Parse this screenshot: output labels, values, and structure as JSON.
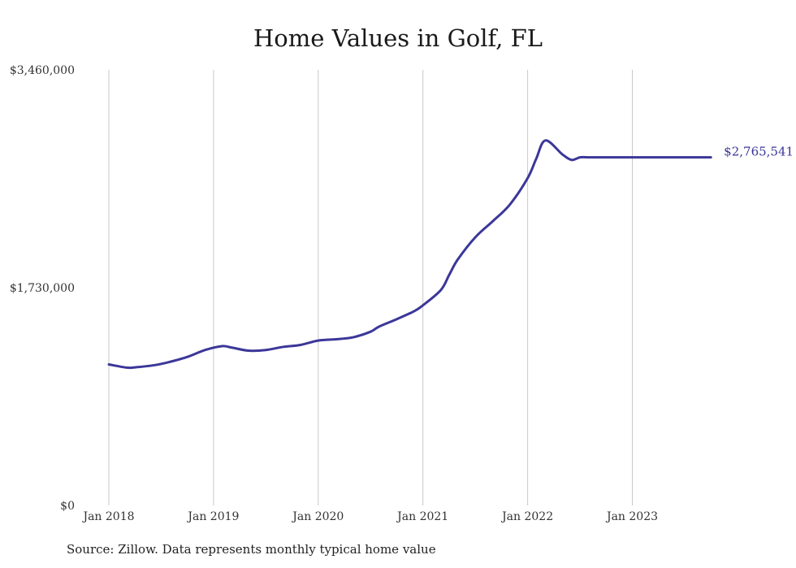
{
  "chart_data": {
    "type": "line",
    "title": "Home Values in Golf, FL",
    "source": "Source: Zillow. Data represents monthly typical home value",
    "xlabel": "",
    "ylabel": "",
    "x_ticks": [
      {
        "label": "Jan 2018",
        "year": 2018.0
      },
      {
        "label": "Jan 2019",
        "year": 2019.0
      },
      {
        "label": "Jan 2020",
        "year": 2020.0
      },
      {
        "label": "Jan 2021",
        "year": 2021.0
      },
      {
        "label": "Jan 2022",
        "year": 2022.0
      },
      {
        "label": "Jan 2023",
        "year": 2023.0
      }
    ],
    "y_ticks": [
      {
        "label": "$0",
        "value": 0
      },
      {
        "label": "$1,730,000",
        "value": 1730000
      },
      {
        "label": "$3,460,000",
        "value": 3460000
      }
    ],
    "ylim": [
      0,
      3460000
    ],
    "xlim": [
      2018.0,
      2023.75
    ],
    "grid": "vertical",
    "line_color": "#3b3799",
    "end_label": "$2,765,541",
    "series": [
      {
        "x": [
          2018.0,
          2018.17,
          2018.25,
          2018.42,
          2018.58,
          2018.75,
          2018.92,
          2019.08,
          2019.17,
          2019.33,
          2019.5,
          2019.67,
          2019.83,
          2020.0,
          2020.17,
          2020.33,
          2020.5,
          2020.58,
          2020.75,
          2020.92,
          2021.0,
          2021.17,
          2021.25,
          2021.33,
          2021.5,
          2021.67,
          2021.83,
          2022.0,
          2022.08,
          2022.17,
          2022.33,
          2022.42,
          2022.5,
          2022.58,
          2022.67,
          2022.83,
          2022.92,
          2023.0,
          2023.08,
          2023.17,
          2023.33,
          2023.5,
          2023.75
        ],
        "values": [
          1120000,
          1095000,
          1097000,
          1112000,
          1140000,
          1180000,
          1235000,
          1265000,
          1255000,
          1230000,
          1235000,
          1260000,
          1275000,
          1310000,
          1320000,
          1335000,
          1380000,
          1420000,
          1480000,
          1545000,
          1590000,
          1710000,
          1830000,
          1950000,
          2130000,
          2260000,
          2390000,
          2600000,
          2750000,
          2900000,
          2790000,
          2745000,
          2765541,
          2765541,
          2765541,
          2765541,
          2765541,
          2765541,
          2765541,
          2765541,
          2765541,
          2765541,
          2765541
        ]
      }
    ]
  }
}
